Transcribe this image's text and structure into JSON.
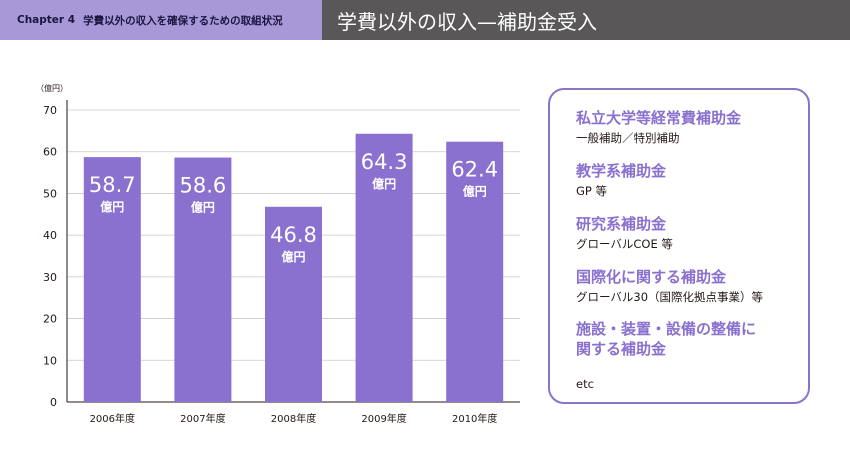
{
  "header": {
    "chapter": "Chapter 4",
    "subtitle": "学費以外の収入を確保するための取組状況",
    "title": "学費以外の収入—補助金受入"
  },
  "chart_data": {
    "type": "bar",
    "unit_label": "（億円）",
    "categories": [
      "2006年度",
      "2007年度",
      "2008年度",
      "2009年度",
      "2010年度"
    ],
    "values": [
      58.7,
      58.6,
      46.8,
      64.3,
      62.4
    ],
    "value_unit": "億円",
    "yticks": [
      0,
      10,
      20,
      30,
      40,
      50,
      60,
      70
    ],
    "ylim": [
      0,
      70
    ],
    "grid": true,
    "bar_color": "#8a70cf"
  },
  "panel": {
    "items": [
      {
        "title": "私立大学等経常費補助金",
        "sub": "一般補助／特別補助"
      },
      {
        "title": "教学系補助金",
        "sub": "GP 等"
      },
      {
        "title": "研究系補助金",
        "sub": "グローバルCOE 等"
      },
      {
        "title": "国際化に関する補助金",
        "sub": "グローバル30（国際化拠点事業）等"
      },
      {
        "title": "施設・装置・設備の整備に関する補助金",
        "title_line1": "施設・装置・設備の整備に",
        "title_line2": "関する補助金",
        "sub": ""
      }
    ],
    "etc": "etc"
  }
}
